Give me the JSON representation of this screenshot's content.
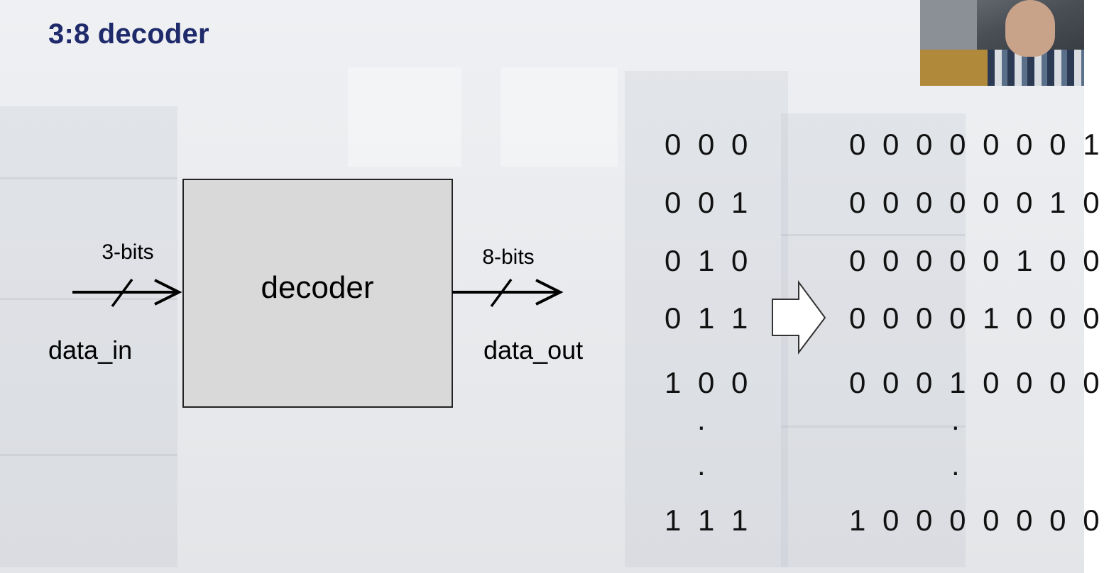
{
  "slide": {
    "title": "3:8 decoder"
  },
  "diagram": {
    "block_label": "decoder",
    "input_label": "data_in",
    "input_width": "3-bits",
    "output_label": "data_out",
    "output_width": "8-bits"
  },
  "table": {
    "inputs": [
      "0 0 0",
      "0 0 1",
      "0 1 0",
      "0 1 1",
      "1 0 0",
      ".",
      ".",
      "1 1 1"
    ],
    "outputs": [
      "0 0 0 0 0 0 0 1",
      "0 0 0 0 0 0 1 0",
      "0 0 0 0 0 1 0 0",
      "0 0 0 0 1 0 0 0",
      "0 0 0 1 0 0 0 0",
      ".",
      ".",
      "1 0 0 0 0 0 0 0"
    ]
  },
  "colors": {
    "title": "#1f2a6b",
    "block_fill": "#d9d9d9",
    "arrow_fill": "#ffffff"
  },
  "icons": {
    "mapping_arrow": "right-block-arrow-icon"
  }
}
